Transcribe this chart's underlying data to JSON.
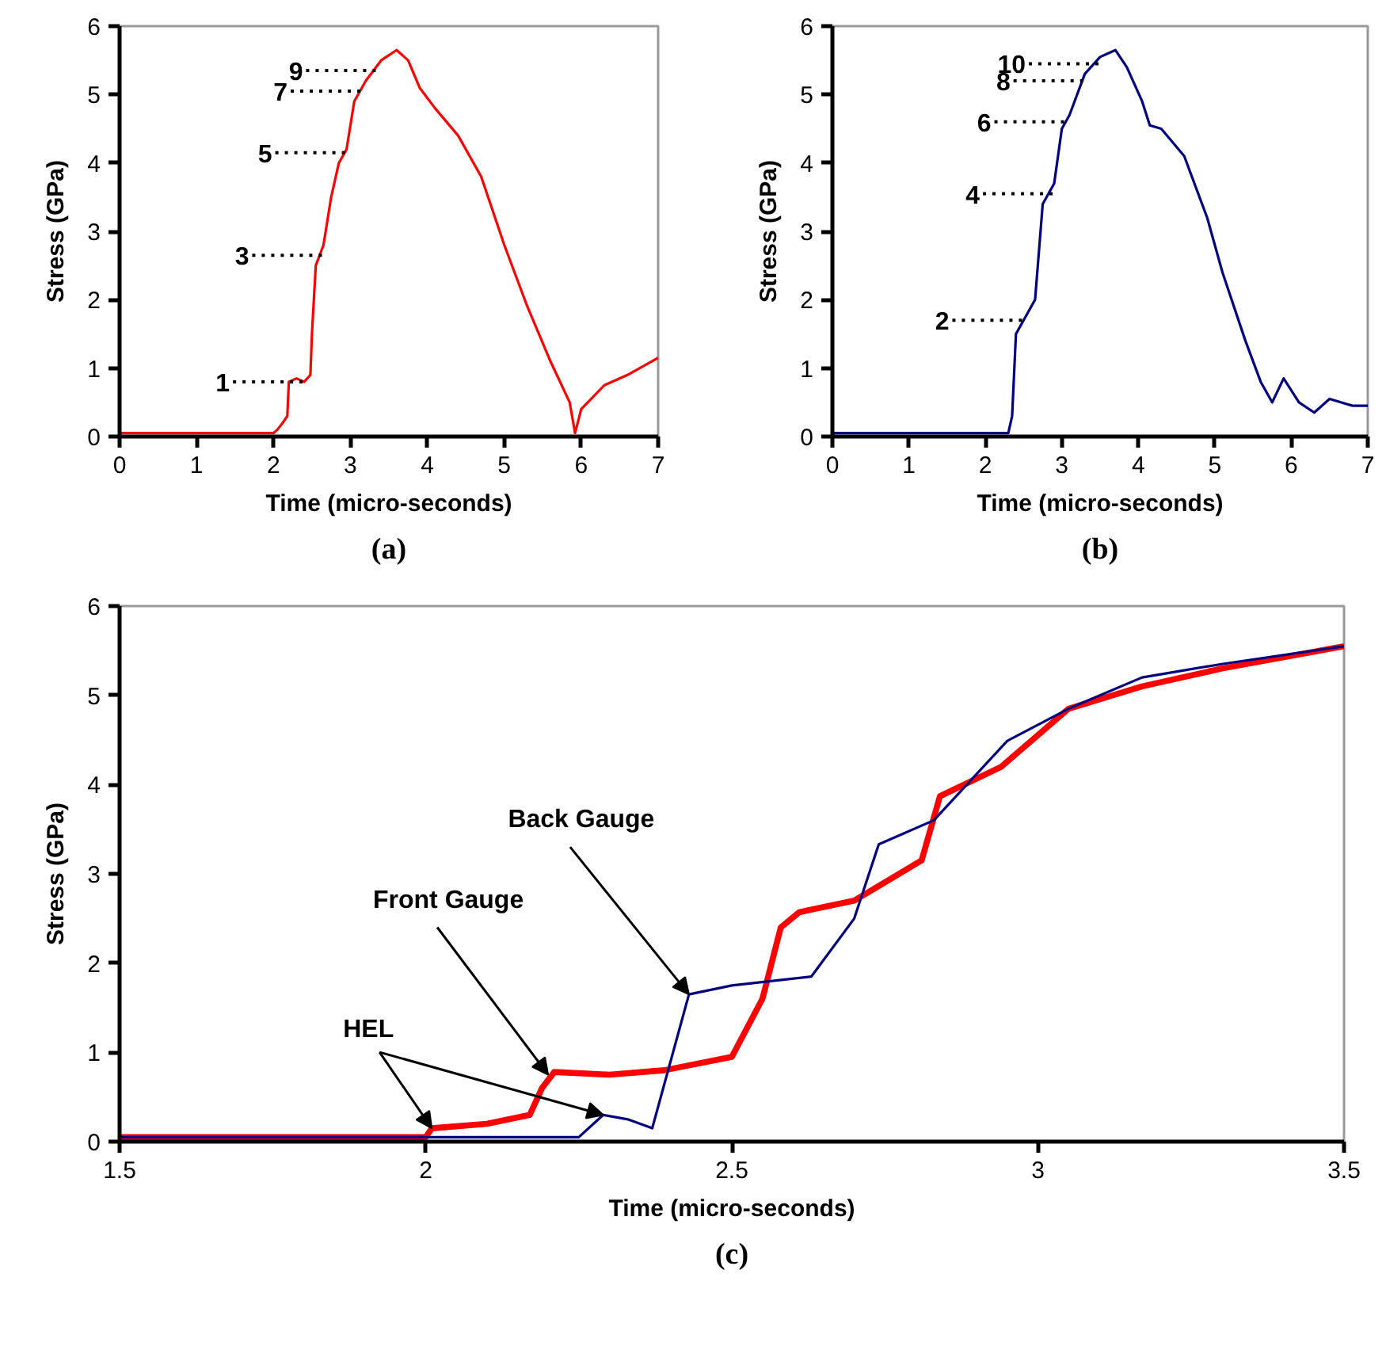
{
  "chart_data": [
    {
      "type": "line",
      "title": "(a)",
      "xlabel": "Time (micro-seconds)",
      "ylabel": "Stress (GPa)",
      "xlim": [
        0,
        7
      ],
      "ylim": [
        0,
        6
      ],
      "xticks": [
        0,
        1,
        2,
        3,
        4,
        5,
        6,
        7
      ],
      "yticks": [
        0,
        1,
        2,
        3,
        4,
        5,
        6
      ],
      "marker": "none",
      "line_style": "solid",
      "series": [
        {
          "color": "#ff0000",
          "x": [
            0,
            0.5,
            1,
            1.5,
            2,
            2.05,
            2.12,
            2.18,
            2.2,
            2.3,
            2.4,
            2.48,
            2.5,
            2.55,
            2.6,
            2.65,
            2.75,
            2.85,
            2.95,
            3.05,
            3.2,
            3.4,
            3.6,
            3.75,
            3.9,
            4.1,
            4.4,
            4.7,
            5.0,
            5.3,
            5.6,
            5.85,
            5.92,
            6.0,
            6.3,
            6.6,
            7
          ],
          "values": [
            0.05,
            0.05,
            0.05,
            0.05,
            0.05,
            0.1,
            0.2,
            0.3,
            0.8,
            0.85,
            0.8,
            0.9,
            1.5,
            2.5,
            2.65,
            2.8,
            3.5,
            4.0,
            4.2,
            4.9,
            5.2,
            5.5,
            5.65,
            5.5,
            5.1,
            4.8,
            4.4,
            3.8,
            2.8,
            1.9,
            1.1,
            0.5,
            0.05,
            0.4,
            0.75,
            0.9,
            1.15
          ]
        }
      ],
      "annotations": [
        {
          "text": "1",
          "x": 2.4,
          "y": 0.8
        },
        {
          "text": "3",
          "x": 2.65,
          "y": 2.65
        },
        {
          "text": "5",
          "x": 2.95,
          "y": 4.15
        },
        {
          "text": "7",
          "x": 3.15,
          "y": 5.05
        },
        {
          "text": "9",
          "x": 3.35,
          "y": 5.35
        }
      ]
    },
    {
      "type": "line",
      "title": "(b)",
      "xlabel": "Time (micro-seconds)",
      "ylabel": "Stress (GPa)",
      "xlim": [
        0,
        7
      ],
      "ylim": [
        0,
        6
      ],
      "xticks": [
        0,
        1,
        2,
        3,
        4,
        5,
        6,
        7
      ],
      "yticks": [
        0,
        1,
        2,
        3,
        4,
        5,
        6
      ],
      "marker": "none",
      "line_style": "solid",
      "series": [
        {
          "color": "#000080",
          "x": [
            0,
            0.5,
            1,
            1.5,
            2,
            2.3,
            2.35,
            2.4,
            2.5,
            2.65,
            2.75,
            2.9,
            3.0,
            3.1,
            3.3,
            3.5,
            3.7,
            3.85,
            4.05,
            4.15,
            4.3,
            4.6,
            4.9,
            5.1,
            5.4,
            5.6,
            5.75,
            5.9,
            6.1,
            6.3,
            6.5,
            6.8,
            7
          ],
          "values": [
            0.05,
            0.05,
            0.05,
            0.05,
            0.05,
            0.05,
            0.3,
            1.5,
            1.7,
            2.0,
            3.4,
            3.7,
            4.5,
            4.7,
            5.3,
            5.55,
            5.65,
            5.4,
            4.9,
            4.55,
            4.5,
            4.1,
            3.2,
            2.4,
            1.4,
            0.8,
            0.5,
            0.85,
            0.5,
            0.35,
            0.55,
            0.45,
            0.45
          ]
        }
      ],
      "annotations": [
        {
          "text": "2",
          "x": 2.5,
          "y": 1.7
        },
        {
          "text": "4",
          "x": 2.9,
          "y": 3.55
        },
        {
          "text": "6",
          "x": 3.05,
          "y": 4.6
        },
        {
          "text": "8",
          "x": 3.3,
          "y": 5.2
        },
        {
          "text": "10",
          "x": 3.5,
          "y": 5.45
        }
      ]
    },
    {
      "type": "line",
      "title": "(c)",
      "xlabel": "Time (micro-seconds)",
      "ylabel": "Stress (GPa)",
      "xlim": [
        1.5,
        3.5
      ],
      "ylim": [
        0,
        6
      ],
      "xticks": [
        1.5,
        2,
        2.5,
        3,
        3.5
      ],
      "yticks": [
        0,
        1,
        2,
        3,
        4,
        5,
        6
      ],
      "marker": "none",
      "line_style": "solid",
      "series": [
        {
          "color": "#ff0000",
          "x": [
            1.5,
            1.75,
            2.0,
            2.01,
            2.1,
            2.17,
            2.19,
            2.21,
            2.3,
            2.39,
            2.5,
            2.55,
            2.58,
            2.61,
            2.7,
            2.81,
            2.84,
            2.94,
            3.05,
            3.17,
            3.3,
            3.5
          ],
          "values": [
            0.05,
            0.05,
            0.05,
            0.15,
            0.2,
            0.3,
            0.6,
            0.78,
            0.75,
            0.8,
            0.95,
            1.6,
            2.4,
            2.57,
            2.7,
            3.15,
            3.87,
            4.2,
            4.85,
            5.1,
            5.3,
            5.55
          ]
        },
        {
          "color": "#000080",
          "x": [
            1.5,
            1.75,
            2.0,
            2.25,
            2.29,
            2.33,
            2.37,
            2.43,
            2.5,
            2.63,
            2.7,
            2.74,
            2.83,
            2.95,
            3.05,
            3.17,
            3.3,
            3.5
          ],
          "values": [
            0.05,
            0.05,
            0.05,
            0.05,
            0.3,
            0.25,
            0.15,
            1.65,
            1.75,
            1.85,
            2.5,
            3.33,
            3.6,
            4.49,
            4.85,
            5.2,
            5.35,
            5.55
          ]
        }
      ],
      "annotations": [
        {
          "text": "HEL",
          "x": 2.01,
          "y": 0.15
        },
        {
          "text": "Front Gauge",
          "x": 2.2,
          "y": 0.75
        },
        {
          "text": "Back Gauge",
          "x": 2.43,
          "y": 1.65
        }
      ]
    }
  ]
}
